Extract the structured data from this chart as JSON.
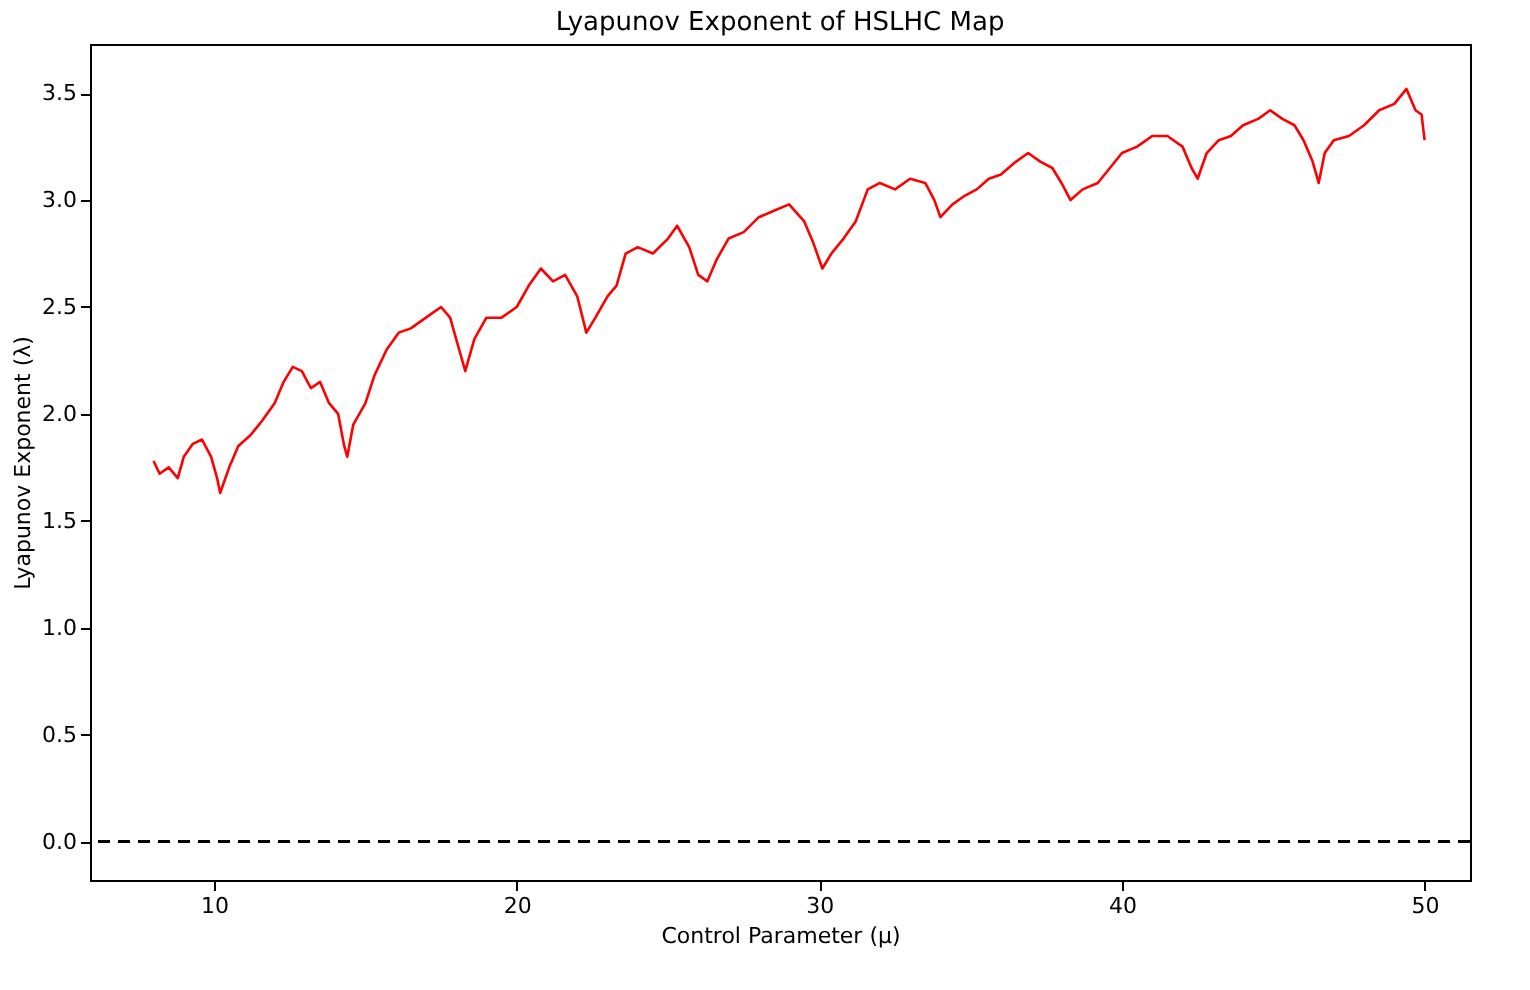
{
  "chart_data": {
    "type": "line",
    "title": "Lyapunov Exponent of HSLHC Map",
    "xlabel": "Control Parameter (μ)",
    "ylabel": "Lyapunov Exponent (λ)",
    "x": [
      8.0,
      8.2,
      8.5,
      8.8,
      9.0,
      9.3,
      9.6,
      9.9,
      10.1,
      10.2,
      10.5,
      10.8,
      11.2,
      11.6,
      12.0,
      12.3,
      12.6,
      12.9,
      13.2,
      13.5,
      13.8,
      14.1,
      14.3,
      14.4,
      14.6,
      15.0,
      15.3,
      15.7,
      16.1,
      16.5,
      17.0,
      17.5,
      17.8,
      18.1,
      18.3,
      18.6,
      19.0,
      19.5,
      20.0,
      20.4,
      20.8,
      21.2,
      21.6,
      22.0,
      22.3,
      22.6,
      23.0,
      23.3,
      23.6,
      24.0,
      24.5,
      25.0,
      25.3,
      25.7,
      26.0,
      26.3,
      26.6,
      27.0,
      27.5,
      28.0,
      28.5,
      29.0,
      29.5,
      29.8,
      30.1,
      30.4,
      30.8,
      31.2,
      31.6,
      32.0,
      32.5,
      33.0,
      33.5,
      33.8,
      34.0,
      34.4,
      34.8,
      35.2,
      35.6,
      36.0,
      36.5,
      36.9,
      37.3,
      37.7,
      38.0,
      38.3,
      38.7,
      39.2,
      39.6,
      40.0,
      40.5,
      41.0,
      41.5,
      42.0,
      42.3,
      42.5,
      42.8,
      43.2,
      43.6,
      44.0,
      44.5,
      44.9,
      45.3,
      45.7,
      46.0,
      46.3,
      46.5,
      46.7,
      47.0,
      47.5,
      48.0,
      48.5,
      49.0,
      49.4,
      49.7,
      49.9,
      50.0
    ],
    "series": [
      {
        "color": "#ff0000",
        "values": [
          1.78,
          1.72,
          1.75,
          1.7,
          1.8,
          1.86,
          1.88,
          1.8,
          1.7,
          1.63,
          1.75,
          1.85,
          1.9,
          1.97,
          2.05,
          2.15,
          2.22,
          2.2,
          2.12,
          2.15,
          2.05,
          2.0,
          1.85,
          1.8,
          1.95,
          2.05,
          2.18,
          2.3,
          2.38,
          2.4,
          2.45,
          2.5,
          2.45,
          2.3,
          2.2,
          2.35,
          2.45,
          2.45,
          2.5,
          2.6,
          2.68,
          2.62,
          2.65,
          2.55,
          2.38,
          2.45,
          2.55,
          2.6,
          2.75,
          2.78,
          2.75,
          2.82,
          2.88,
          2.78,
          2.65,
          2.62,
          2.72,
          2.82,
          2.85,
          2.92,
          2.95,
          2.98,
          2.9,
          2.8,
          2.68,
          2.75,
          2.82,
          2.9,
          3.05,
          3.08,
          3.05,
          3.1,
          3.08,
          3.0,
          2.92,
          2.98,
          3.02,
          3.05,
          3.1,
          3.12,
          3.18,
          3.22,
          3.18,
          3.15,
          3.08,
          3.0,
          3.05,
          3.08,
          3.15,
          3.22,
          3.25,
          3.3,
          3.3,
          3.25,
          3.15,
          3.1,
          3.22,
          3.28,
          3.3,
          3.35,
          3.38,
          3.42,
          3.38,
          3.35,
          3.28,
          3.18,
          3.08,
          3.22,
          3.28,
          3.3,
          3.35,
          3.42,
          3.45,
          3.52,
          3.42,
          3.4,
          3.28
        ]
      }
    ],
    "xlim": [
      5.9,
      51.5
    ],
    "xticks": [
      10,
      20,
      30,
      40,
      50
    ],
    "ylim": [
      -0.18,
      3.73
    ],
    "yticks": [
      {
        "value": 0,
        "label": "0.0"
      },
      0.5,
      {
        "value": 1,
        "label": "1.0"
      },
      1.5,
      {
        "value": 2,
        "label": "2.0"
      },
      2.5,
      {
        "value": 3,
        "label": "3.0"
      },
      3.5
    ],
    "ref_lines": [
      {
        "axis": "y",
        "value": 0,
        "color": "#000000",
        "line_style": "dashed"
      }
    ],
    "grid": false,
    "marker": "none",
    "line_style": "solid"
  }
}
